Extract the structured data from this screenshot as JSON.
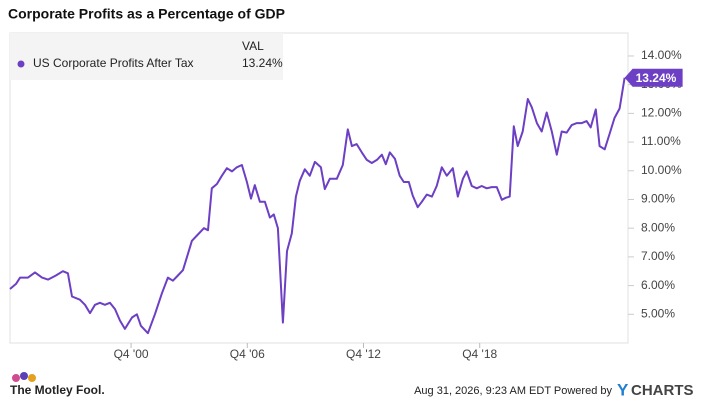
{
  "chart_data": {
    "type": "line",
    "title": "Corporate Profits as a Percentage of GDP",
    "legend_header": "VAL",
    "series": [
      {
        "name": "US Corporate Profits After Tax",
        "color": "#6c3fc4",
        "value_label": "13.24%",
        "values": [
          5.88,
          6.06,
          6.28,
          6.28,
          6.46,
          6.28,
          6.21,
          6.35,
          6.5,
          6.43,
          5.62,
          5.51,
          5.33,
          5.04,
          5.33,
          5.4,
          5.33,
          5.4,
          5.18,
          4.78,
          4.49,
          4.89,
          5.0,
          4.6,
          4.34,
          5.0,
          5.73,
          6.28,
          6.17,
          6.35,
          6.54,
          7.09,
          7.56,
          7.78,
          8.0,
          7.93,
          9.39,
          9.54,
          9.83,
          10.09,
          9.98,
          10.12,
          10.2,
          9.61,
          9.03,
          9.5,
          8.92,
          8.92,
          8.37,
          8.48,
          8.0,
          4.71,
          7.2,
          7.82,
          9.1,
          9.65,
          10.05,
          9.83,
          10.31,
          10.12,
          9.36,
          9.72,
          9.72,
          10.2,
          11.44,
          10.86,
          10.93,
          10.64,
          10.38,
          10.27,
          10.38,
          10.56,
          10.23,
          10.64,
          10.42,
          9.83,
          9.61,
          9.61,
          9.14,
          8.73,
          8.92,
          9.17,
          9.1,
          9.47,
          10.12,
          9.83,
          10.09,
          9.1,
          9.72,
          9.98,
          9.47,
          9.39,
          9.47,
          9.39,
          9.43,
          9.43,
          8.99,
          9.06,
          9.1,
          11.55,
          10.86,
          11.37,
          12.5,
          12.21,
          11.66,
          11.37,
          12.03,
          11.37,
          10.56,
          11.37,
          11.33,
          11.59,
          11.66,
          11.66,
          11.73,
          11.51,
          12.14,
          10.86,
          10.75,
          11.3,
          11.84,
          12.17,
          13.24
        ]
      }
    ],
    "x": [
      1994.5,
      1994.81,
      1995.02,
      1995.43,
      1995.79,
      1996.15,
      1996.46,
      1996.87,
      1997.23,
      1997.49,
      1997.7,
      1998.11,
      1998.37,
      1998.63,
      1998.89,
      1999.14,
      1999.4,
      1999.66,
      1999.92,
      2000.18,
      2000.43,
      2000.8,
      2001.05,
      2001.26,
      2001.62,
      2001.98,
      2002.34,
      2002.65,
      2002.91,
      2003.17,
      2003.43,
      2003.68,
      2003.89,
      2004.2,
      2004.51,
      2004.72,
      2004.92,
      2005.18,
      2005.44,
      2005.7,
      2005.96,
      2006.21,
      2006.47,
      2006.73,
      2006.94,
      2007.14,
      2007.4,
      2007.66,
      2007.92,
      2008.12,
      2008.33,
      2008.59,
      2008.8,
      2009.05,
      2009.26,
      2009.46,
      2009.72,
      2009.98,
      2010.24,
      2010.55,
      2010.75,
      2011.01,
      2011.37,
      2011.68,
      2011.94,
      2012.15,
      2012.4,
      2012.66,
      2012.92,
      2013.18,
      2013.44,
      2013.7,
      2013.9,
      2014.11,
      2014.37,
      2014.62,
      2014.83,
      2015.09,
      2015.29,
      2015.55,
      2015.76,
      2016.02,
      2016.28,
      2016.53,
      2016.79,
      2017.05,
      2017.36,
      2017.62,
      2017.88,
      2018.08,
      2018.34,
      2018.6,
      2018.85,
      2019.11,
      2019.37,
      2019.63,
      2019.89,
      2020.09,
      2020.3,
      2020.51,
      2020.71,
      2020.97,
      2021.23,
      2021.44,
      2021.7,
      2021.95,
      2022.21,
      2022.47,
      2022.73,
      2022.98,
      2023.24,
      2023.5,
      2023.76,
      2024.02,
      2024.27,
      2024.48,
      2024.74,
      2024.94,
      2025.2,
      2025.46,
      2025.71,
      2025.97,
      2026.23
    ],
    "xlim": [
      1994.5,
      2026.25
    ],
    "xticks": [
      {
        "value": 2000.75,
        "label": "Q4 '00"
      },
      {
        "value": 2006.75,
        "label": "Q4 '06"
      },
      {
        "value": 2012.75,
        "label": "Q4 '12"
      },
      {
        "value": 2018.75,
        "label": "Q4 '18"
      }
    ],
    "ylim": [
      4.0,
      14.8
    ],
    "yticks": [
      {
        "value": 5,
        "label": "5.00%"
      },
      {
        "value": 6,
        "label": "6.00%"
      },
      {
        "value": 7,
        "label": "7.00%"
      },
      {
        "value": 8,
        "label": "8.00%"
      },
      {
        "value": 9,
        "label": "9.00%"
      },
      {
        "value": 10,
        "label": "10.00%"
      },
      {
        "value": 11,
        "label": "11.00%"
      },
      {
        "value": 12,
        "label": "12.00%"
      },
      {
        "value": 13,
        "label": "13.00%"
      },
      {
        "value": 14,
        "label": "14.00%"
      }
    ],
    "grid": false
  },
  "footer": {
    "source_logo": "The Motley Fool.",
    "timestamp": "Aug 31, 2026, 9:23 AM EDT Powered by",
    "brand_first": "Y",
    "brand_rest": "CHARTS"
  }
}
